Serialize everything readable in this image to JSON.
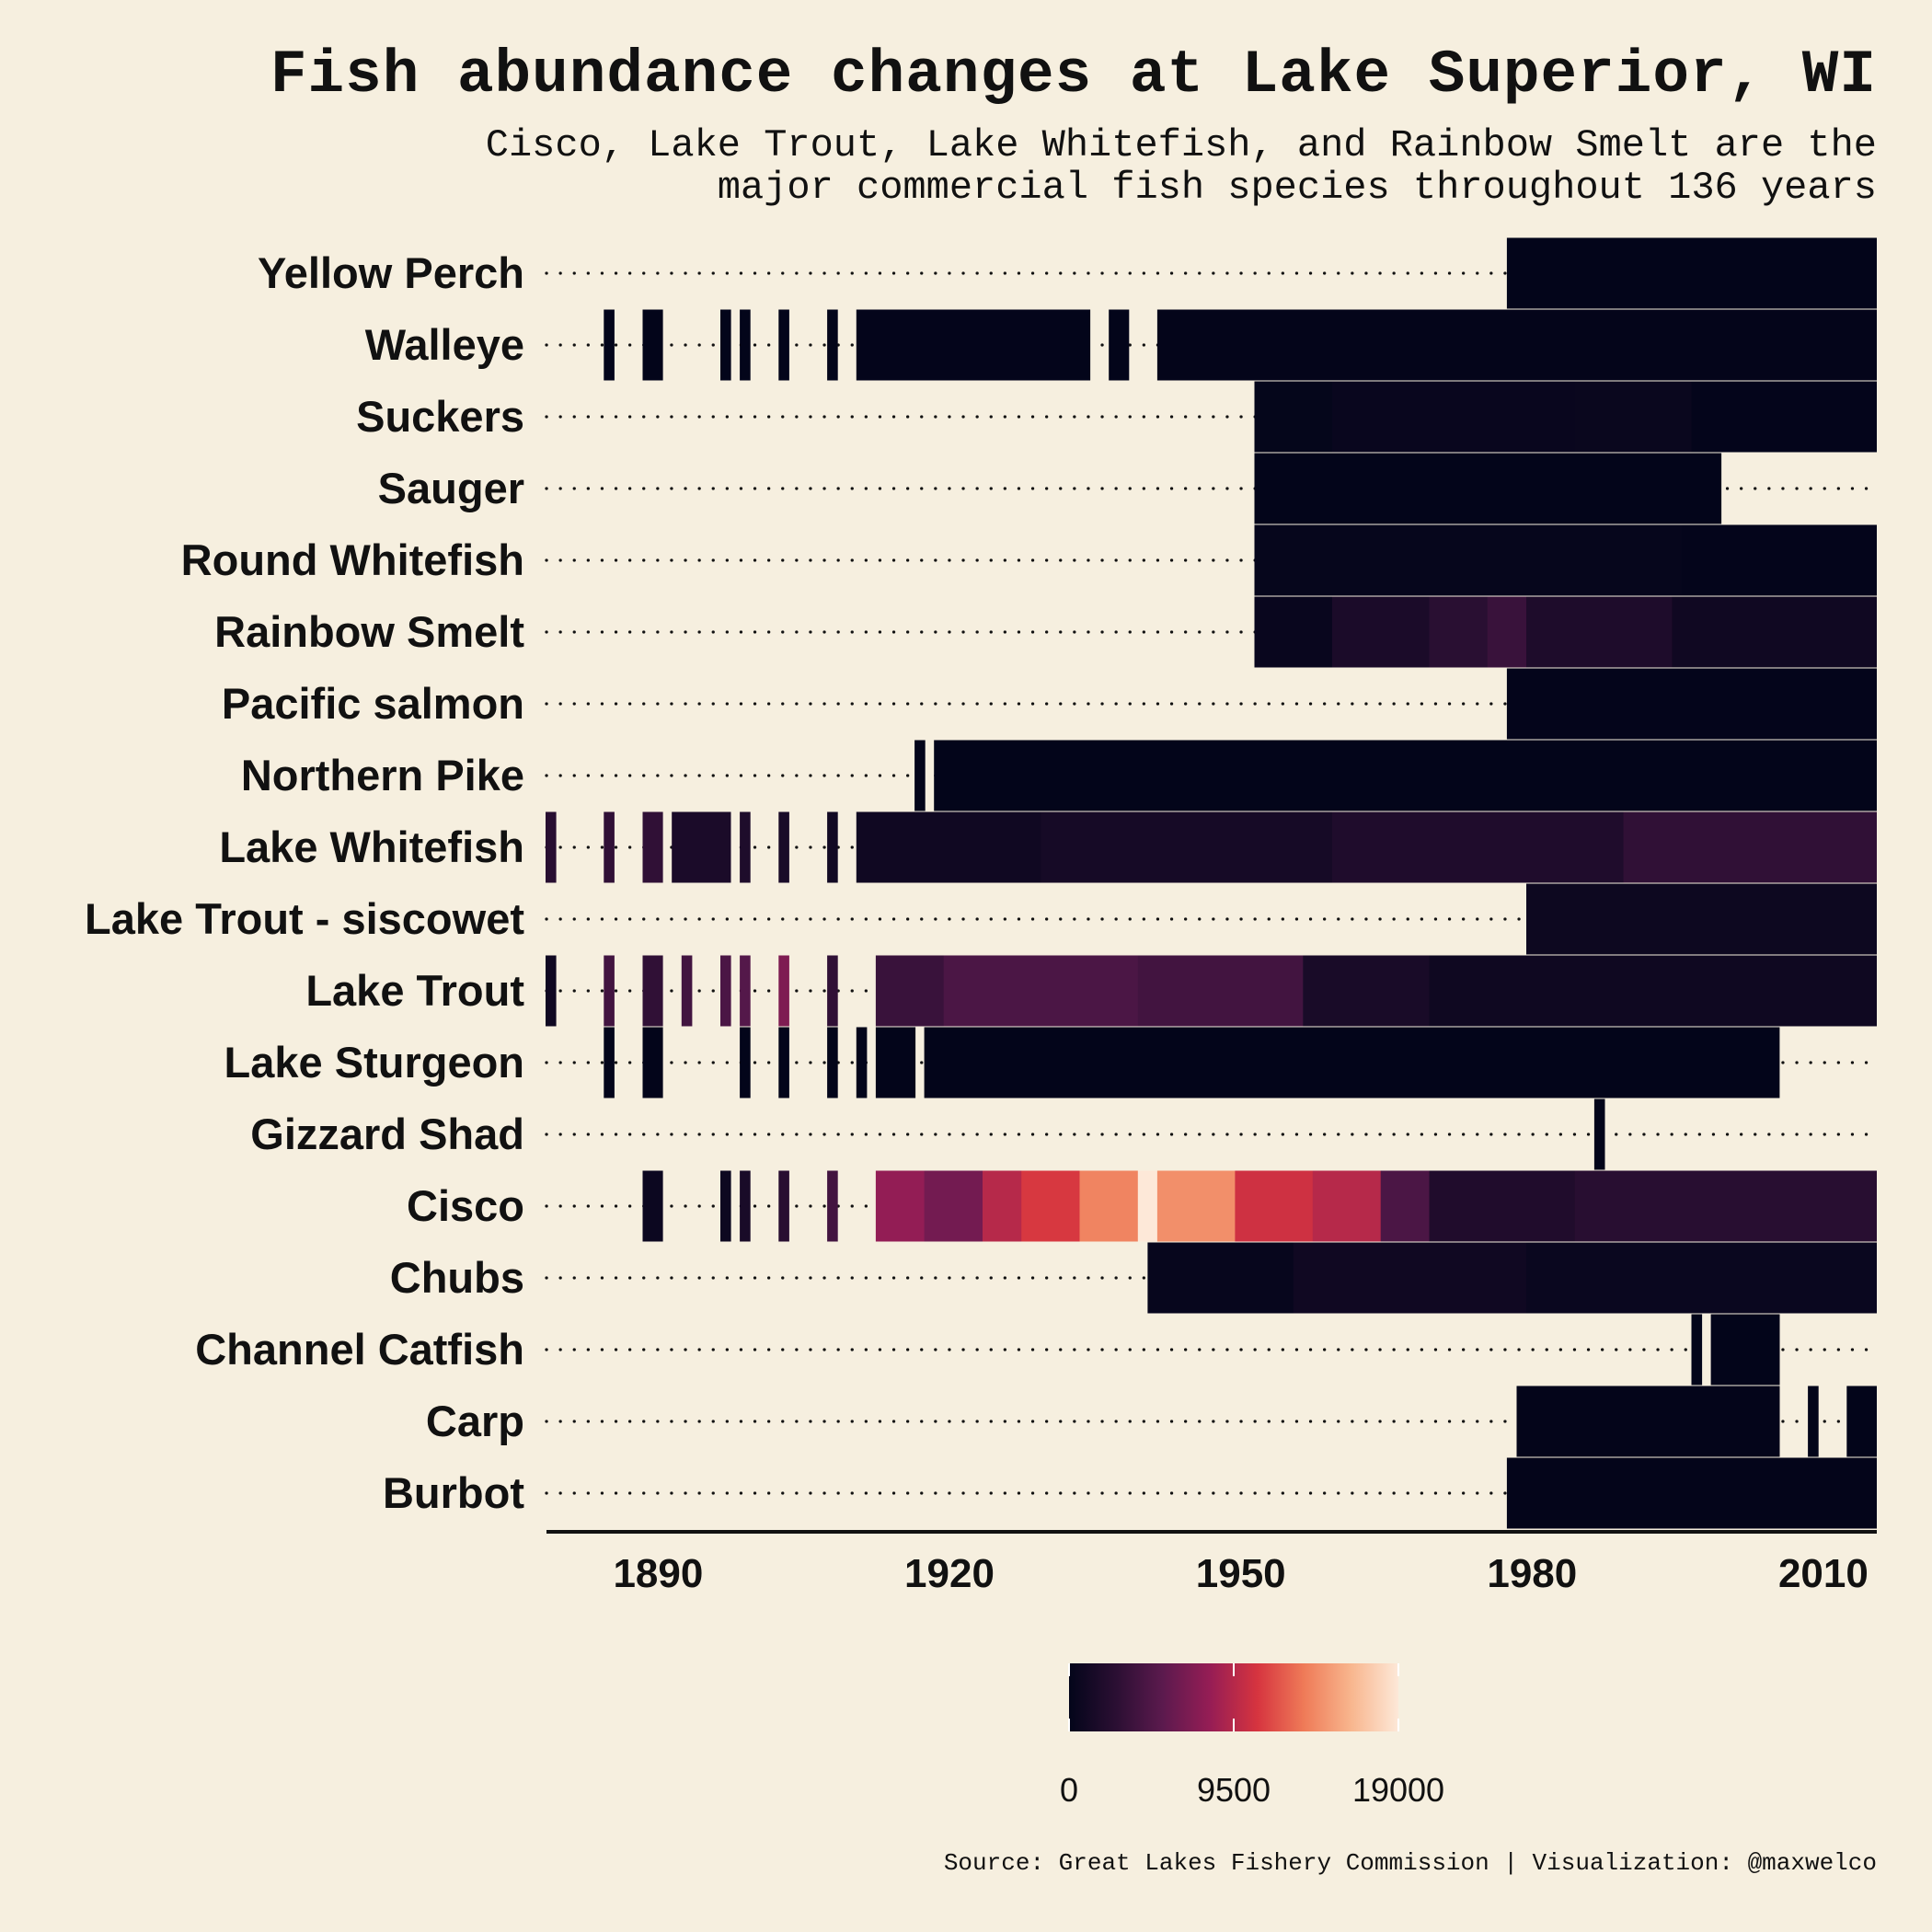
{
  "title": "Fish abundance changes at Lake Superior, WI",
  "subtitle_lines": [
    "Cisco, Lake Trout, Lake Whitefish, and Rainbow Smelt are the",
    "major commercial fish species throughout 136 years"
  ],
  "caption": "Source: Great Lakes Fishery Commission | Visualization: @maxwelco",
  "chart_data": {
    "type": "heatmap",
    "x_range": [
      1879,
      2015
    ],
    "x_ticks": [
      1890,
      1920,
      1950,
      1980,
      2010
    ],
    "color_scale": {
      "min": 0,
      "max": 19000,
      "ticks": [
        0,
        9500,
        19000
      ],
      "colors": [
        "#03051a",
        "#2b0f33",
        "#5c1a4e",
        "#961d55",
        "#d6343f",
        "#ef7b58",
        "#f8b68e",
        "#fde8d8"
      ]
    },
    "legend_position": "bottom",
    "grid": false,
    "species": [
      {
        "name": "Yellow Perch",
        "segments": [
          [
            1978,
            2015,
            30
          ]
        ]
      },
      {
        "name": "Walleye",
        "segments": [
          [
            1885,
            1885,
            5
          ],
          [
            1889,
            1890,
            8
          ],
          [
            1897,
            1897,
            5
          ],
          [
            1899,
            1899,
            5
          ],
          [
            1903,
            1903,
            5
          ],
          [
            1908,
            1908,
            5
          ],
          [
            1911,
            1931,
            60
          ],
          [
            1932,
            1934,
            30
          ],
          [
            1937,
            1938,
            20
          ],
          [
            1942,
            2015,
            40
          ]
        ]
      },
      {
        "name": "Suckers",
        "segments": [
          [
            1952,
            1960,
            150
          ],
          [
            1960,
            1985,
            380
          ],
          [
            1985,
            1997,
            450
          ],
          [
            1997,
            2015,
            100
          ]
        ]
      },
      {
        "name": "Sauger",
        "segments": [
          [
            1952,
            1999,
            30
          ]
        ]
      },
      {
        "name": "Round Whitefish",
        "segments": [
          [
            1952,
            1996,
            200
          ],
          [
            1996,
            2015,
            60
          ]
        ]
      },
      {
        "name": "Rainbow Smelt",
        "segments": [
          [
            1952,
            1960,
            400
          ],
          [
            1960,
            1970,
            1600
          ],
          [
            1970,
            1976,
            2600
          ],
          [
            1976,
            1980,
            3500
          ],
          [
            1980,
            1995,
            1800
          ],
          [
            1995,
            2015,
            900
          ]
        ]
      },
      {
        "name": "Pacific salmon",
        "segments": [
          [
            1978,
            2015,
            60
          ]
        ]
      },
      {
        "name": "Northern Pike",
        "segments": [
          [
            1917,
            1917,
            10
          ],
          [
            1919,
            2015,
            30
          ]
        ]
      },
      {
        "name": "Lake Whitefish",
        "segments": [
          [
            1879,
            1879,
            2500
          ],
          [
            1885,
            1885,
            3000
          ],
          [
            1889,
            1890,
            3000
          ],
          [
            1892,
            1897,
            1600
          ],
          [
            1899,
            1899,
            1800
          ],
          [
            1903,
            1903,
            1500
          ],
          [
            1908,
            1908,
            1000
          ],
          [
            1911,
            1930,
            900
          ],
          [
            1930,
            1960,
            1300
          ],
          [
            1960,
            1990,
            1900
          ],
          [
            1990,
            2015,
            3000
          ]
        ]
      },
      {
        "name": "Lake Trout - siscowet",
        "segments": [
          [
            1980,
            2015,
            700
          ]
        ]
      },
      {
        "name": "Lake Trout",
        "segments": [
          [
            1879,
            1879,
            900
          ],
          [
            1885,
            1885,
            4000
          ],
          [
            1889,
            1890,
            3000
          ],
          [
            1893,
            1893,
            4000
          ],
          [
            1897,
            1897,
            4500
          ],
          [
            1899,
            1899,
            5000
          ],
          [
            1903,
            1903,
            7000
          ],
          [
            1908,
            1908,
            3000
          ],
          [
            1913,
            1920,
            3500
          ],
          [
            1920,
            1940,
            4500
          ],
          [
            1940,
            1957,
            4000
          ],
          [
            1957,
            1970,
            1500
          ],
          [
            1970,
            2015,
            800
          ]
        ]
      },
      {
        "name": "Lake Sturgeon",
        "segments": [
          [
            1885,
            1885,
            30
          ],
          [
            1889,
            1890,
            30
          ],
          [
            1899,
            1899,
            30
          ],
          [
            1903,
            1903,
            30
          ],
          [
            1908,
            1908,
            30
          ],
          [
            1911,
            1911,
            30
          ],
          [
            1913,
            1916,
            30
          ],
          [
            1918,
            2005,
            30
          ]
        ]
      },
      {
        "name": "Gizzard Shad",
        "segments": [
          [
            1987,
            1987,
            10
          ]
        ]
      },
      {
        "name": "Cisco",
        "segments": [
          [
            1889,
            1890,
            600
          ],
          [
            1897,
            1897,
            700
          ],
          [
            1899,
            1899,
            1500
          ],
          [
            1903,
            1903,
            2500
          ],
          [
            1908,
            1908,
            4000
          ],
          [
            1913,
            1918,
            8000
          ],
          [
            1918,
            1924,
            6500
          ],
          [
            1924,
            1928,
            9500
          ],
          [
            1928,
            1934,
            11000
          ],
          [
            1934,
            1940,
            14000
          ],
          [
            1940,
            1942,
            19000
          ],
          [
            1942,
            1950,
            14500
          ],
          [
            1950,
            1958,
            10500
          ],
          [
            1958,
            1965,
            9500
          ],
          [
            1965,
            1970,
            4500
          ],
          [
            1970,
            1985,
            2000
          ],
          [
            1985,
            2015,
            2500
          ]
        ]
      },
      {
        "name": "Chubs",
        "segments": [
          [
            1941,
            1956,
            300
          ],
          [
            1956,
            1980,
            900
          ],
          [
            1980,
            2015,
            500
          ]
        ]
      },
      {
        "name": "Channel Catfish",
        "segments": [
          [
            1997,
            1997,
            10
          ],
          [
            1999,
            2005,
            10
          ]
        ]
      },
      {
        "name": "Carp",
        "segments": [
          [
            1979,
            2005,
            50
          ],
          [
            2009,
            2009,
            20
          ],
          [
            2013,
            2015,
            20
          ]
        ]
      },
      {
        "name": "Burbot",
        "segments": [
          [
            1978,
            2015,
            40
          ]
        ]
      }
    ]
  }
}
